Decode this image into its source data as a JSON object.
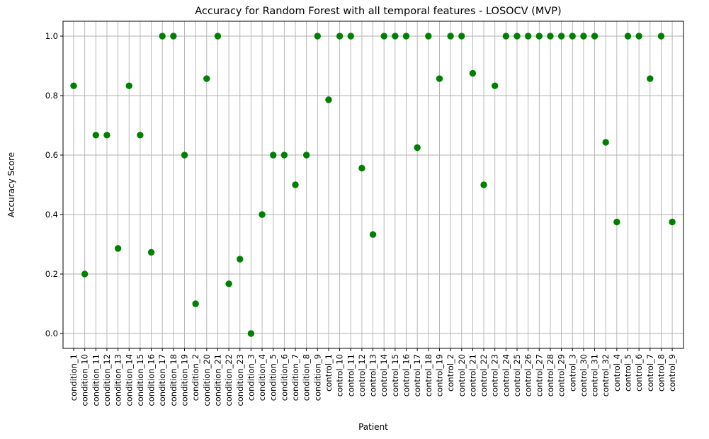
{
  "chart_data": {
    "type": "scatter",
    "title": "Accuracy for Random Forest with all temporal features - LOSOCV (MVP)",
    "xlabel": "Patient",
    "ylabel": "Accuracy Score",
    "ylim": [
      -0.05,
      1.05
    ],
    "yticks": [
      0.0,
      0.2,
      0.4,
      0.6,
      0.8,
      1.0
    ],
    "ytick_labels": [
      "0.0",
      "0.2",
      "0.4",
      "0.6",
      "0.8",
      "1.0"
    ],
    "grid": true,
    "marker_color": "#008000",
    "categories": [
      "condition_1",
      "condition_10",
      "condition_11",
      "condition_12",
      "condition_13",
      "condition_14",
      "condition_15",
      "condition_16",
      "condition_17",
      "condition_18",
      "condition_19",
      "condition_2",
      "condition_20",
      "condition_21",
      "condition_22",
      "condition_23",
      "condition_3",
      "condition_4",
      "condition_5",
      "condition_6",
      "condition_7",
      "condition_8",
      "condition_9",
      "control_1",
      "control_10",
      "control_11",
      "control_12",
      "control_13",
      "control_14",
      "control_15",
      "control_16",
      "control_17",
      "control_18",
      "control_19",
      "control_2",
      "control_20",
      "control_21",
      "control_22",
      "control_23",
      "control_24",
      "control_25",
      "control_26",
      "control_27",
      "control_28",
      "control_29",
      "control_3",
      "control_30",
      "control_31",
      "control_32",
      "control_4",
      "control_5",
      "control_6",
      "control_7",
      "control_8",
      "control_9"
    ],
    "values": [
      0.833,
      0.2,
      0.667,
      0.667,
      0.286,
      0.833,
      0.667,
      0.273,
      1.0,
      1.0,
      0.6,
      0.1,
      0.857,
      1.0,
      0.167,
      0.25,
      0.0,
      0.4,
      0.6,
      0.6,
      0.5,
      0.6,
      1.0,
      0.786,
      1.0,
      1.0,
      0.556,
      0.333,
      1.0,
      1.0,
      1.0,
      0.625,
      1.0,
      0.857,
      1.0,
      1.0,
      0.875,
      0.5,
      0.833,
      1.0,
      1.0,
      1.0,
      1.0,
      1.0,
      1.0,
      1.0,
      1.0,
      1.0,
      0.643,
      0.375,
      1.0,
      1.0,
      0.857,
      1.0,
      0.375
    ]
  }
}
